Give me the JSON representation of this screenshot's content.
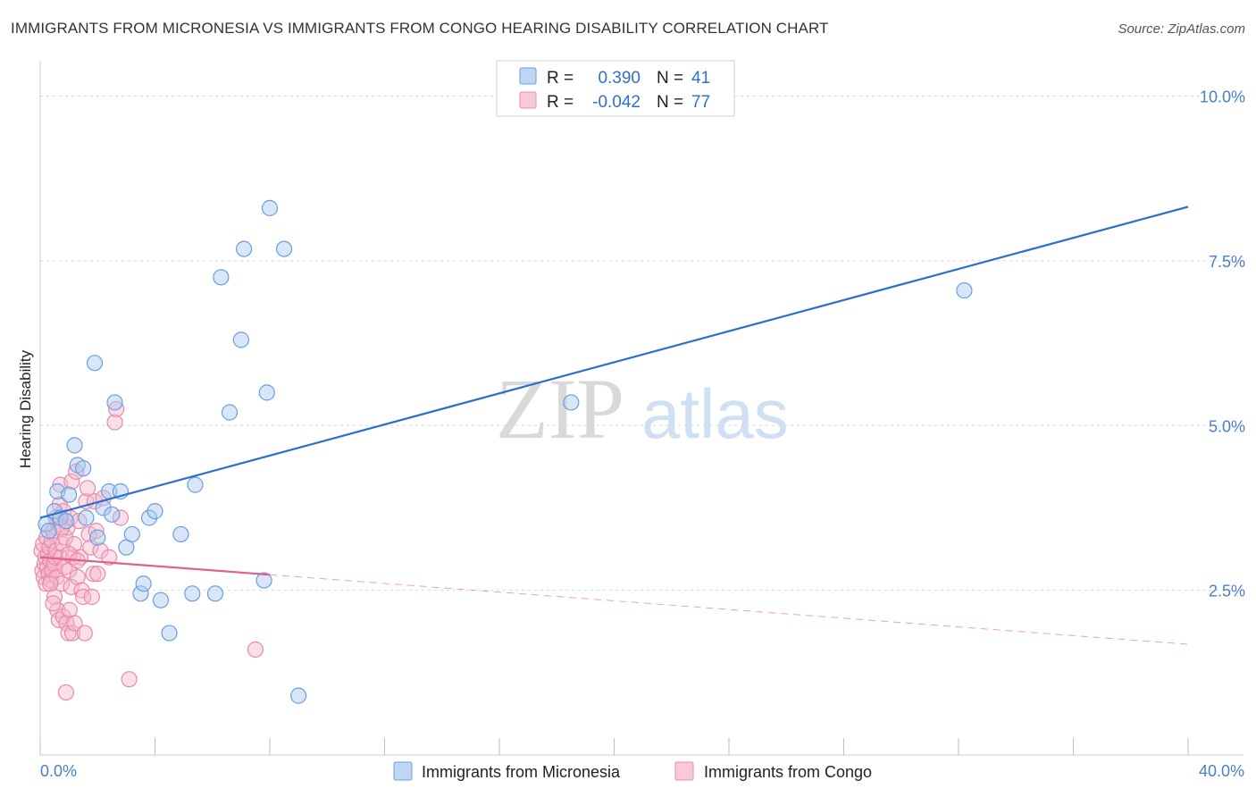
{
  "header": {
    "title": "IMMIGRANTS FROM MICRONESIA VS IMMIGRANTS FROM CONGO HEARING DISABILITY CORRELATION CHART",
    "source": "Source: ZipAtlas.com"
  },
  "watermark": {
    "zip": "ZIP",
    "atlas": "atlas"
  },
  "legend": {
    "rows": [
      {
        "r_label": "R = ",
        "r_value": "0.390",
        "n_label": "N = ",
        "n_value": "41"
      },
      {
        "r_label": "R = ",
        "r_value": "-0.042",
        "n_label": "N = ",
        "n_value": "77"
      }
    ]
  },
  "bottom_legend": [
    "Immigrants from Micronesia",
    "Immigrants from Congo"
  ],
  "colors": {
    "micronesia_fill": "#a8c8f0",
    "micronesia_stroke": "#6a9ee0",
    "micronesia_line": "#2a6fcc",
    "congo_fill": "#f5b8cc",
    "congo_stroke": "#e98aaa",
    "congo_line": "#e0608e",
    "tick_text": "#4a7fc9",
    "grid": "#d8d8d8"
  },
  "chart_data": {
    "type": "scatter",
    "title": "IMMIGRANTS FROM MICRONESIA VS IMMIGRANTS FROM CONGO HEARING DISABILITY CORRELATION CHART",
    "ylabel": "Hearing Disability",
    "xlabel": "",
    "xlim": [
      0,
      40
    ],
    "ylim": [
      0,
      10.4
    ],
    "x_ticklabels": [
      "0.0%",
      "40.0%"
    ],
    "y_ticks": [
      2.5,
      5.0,
      7.5,
      10.0
    ],
    "y_ticklabels": [
      "2.5%",
      "5.0%",
      "7.5%",
      "10.0%"
    ],
    "grid": true,
    "legend_position": "top-center",
    "series": [
      {
        "name": "Immigrants from Micronesia",
        "r": 0.39,
        "n": 41,
        "trend": {
          "x": [
            0.0,
            40.0
          ],
          "y": [
            3.6,
            8.32
          ],
          "solid_until": 40.0
        },
        "points": [
          [
            0.2,
            3.5
          ],
          [
            0.5,
            3.7
          ],
          [
            0.6,
            4.0
          ],
          [
            0.7,
            3.6
          ],
          [
            0.9,
            3.55
          ],
          [
            1.0,
            3.95
          ],
          [
            1.2,
            4.7
          ],
          [
            1.3,
            4.4
          ],
          [
            1.5,
            4.35
          ],
          [
            1.6,
            3.6
          ],
          [
            1.9,
            5.95
          ],
          [
            2.0,
            3.3
          ],
          [
            2.2,
            3.75
          ],
          [
            2.4,
            4.0
          ],
          [
            2.5,
            3.65
          ],
          [
            2.6,
            5.35
          ],
          [
            2.8,
            4.0
          ],
          [
            3.0,
            3.15
          ],
          [
            3.2,
            3.35
          ],
          [
            3.5,
            2.45
          ],
          [
            3.6,
            2.6
          ],
          [
            3.8,
            3.6
          ],
          [
            4.0,
            3.7
          ],
          [
            4.2,
            2.35
          ],
          [
            4.5,
            1.85
          ],
          [
            4.9,
            3.35
          ],
          [
            5.3,
            2.45
          ],
          [
            5.4,
            4.1
          ],
          [
            6.1,
            2.45
          ],
          [
            6.3,
            7.25
          ],
          [
            6.6,
            5.2
          ],
          [
            7.0,
            6.3
          ],
          [
            7.1,
            7.68
          ],
          [
            7.8,
            2.65
          ],
          [
            7.9,
            5.5
          ],
          [
            8.0,
            8.3
          ],
          [
            8.5,
            7.68
          ],
          [
            9.0,
            0.9
          ],
          [
            18.5,
            5.35
          ],
          [
            32.2,
            7.05
          ],
          [
            0.3,
            3.4
          ]
        ]
      },
      {
        "name": "Immigrants from Congo",
        "r": -0.042,
        "n": 77,
        "trend": {
          "x": [
            0.0,
            40.0
          ],
          "y": [
            3.0,
            1.68
          ],
          "solid_until": 8.0
        },
        "points": [
          [
            0.05,
            3.1
          ],
          [
            0.08,
            2.8
          ],
          [
            0.1,
            3.2
          ],
          [
            0.12,
            2.7
          ],
          [
            0.15,
            2.9
          ],
          [
            0.18,
            3.0
          ],
          [
            0.2,
            2.6
          ],
          [
            0.22,
            3.3
          ],
          [
            0.25,
            2.85
          ],
          [
            0.28,
            3.05
          ],
          [
            0.3,
            2.75
          ],
          [
            0.32,
            3.15
          ],
          [
            0.35,
            2.95
          ],
          [
            0.38,
            2.65
          ],
          [
            0.4,
            3.25
          ],
          [
            0.42,
            2.8
          ],
          [
            0.45,
            3.4
          ],
          [
            0.48,
            2.9
          ],
          [
            0.5,
            2.4
          ],
          [
            0.52,
            3.0
          ],
          [
            0.55,
            3.1
          ],
          [
            0.58,
            2.7
          ],
          [
            0.6,
            2.2
          ],
          [
            0.62,
            3.5
          ],
          [
            0.65,
            2.05
          ],
          [
            0.68,
            3.8
          ],
          [
            0.7,
            4.1
          ],
          [
            0.72,
            3.0
          ],
          [
            0.75,
            2.6
          ],
          [
            0.78,
            3.2
          ],
          [
            0.8,
            2.1
          ],
          [
            0.82,
            3.7
          ],
          [
            0.85,
            2.85
          ],
          [
            0.88,
            3.3
          ],
          [
            0.9,
            0.95
          ],
          [
            0.92,
            2.0
          ],
          [
            0.95,
            3.45
          ],
          [
            0.98,
            1.85
          ],
          [
            1.0,
            2.8
          ],
          [
            1.02,
            2.2
          ],
          [
            1.05,
            3.6
          ],
          [
            1.08,
            2.55
          ],
          [
            1.1,
            4.15
          ],
          [
            1.12,
            1.85
          ],
          [
            1.15,
            3.0
          ],
          [
            1.18,
            3.2
          ],
          [
            1.2,
            2.0
          ],
          [
            1.25,
            4.3
          ],
          [
            1.3,
            2.7
          ],
          [
            1.35,
            3.55
          ],
          [
            1.4,
            3.0
          ],
          [
            1.45,
            2.5
          ],
          [
            1.5,
            2.4
          ],
          [
            1.55,
            1.85
          ],
          [
            1.6,
            3.85
          ],
          [
            1.65,
            4.05
          ],
          [
            1.7,
            3.35
          ],
          [
            1.75,
            3.15
          ],
          [
            1.8,
            2.4
          ],
          [
            1.85,
            2.75
          ],
          [
            1.9,
            3.85
          ],
          [
            1.95,
            3.4
          ],
          [
            2.0,
            2.75
          ],
          [
            2.1,
            3.1
          ],
          [
            2.2,
            3.9
          ],
          [
            2.4,
            3.0
          ],
          [
            2.6,
            5.05
          ],
          [
            2.65,
            5.25
          ],
          [
            2.8,
            3.6
          ],
          [
            3.1,
            1.15
          ],
          [
            7.5,
            1.6
          ],
          [
            0.35,
            2.6
          ],
          [
            0.55,
            3.6
          ],
          [
            0.75,
            3.45
          ],
          [
            1.0,
            3.05
          ],
          [
            1.3,
            2.95
          ],
          [
            0.45,
            2.3
          ]
        ]
      }
    ]
  }
}
